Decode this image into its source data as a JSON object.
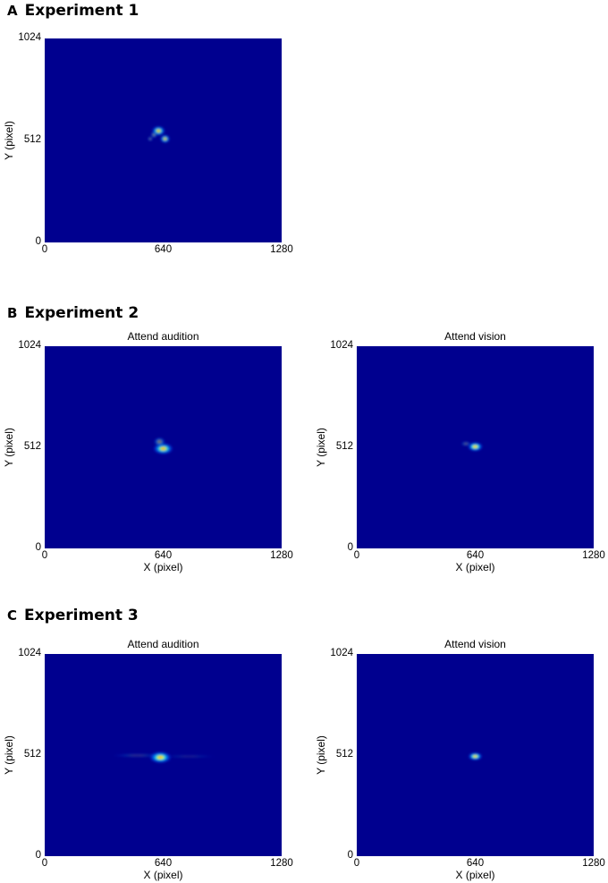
{
  "panels": [
    {
      "letter": "A",
      "title": "Experiment 1"
    },
    {
      "letter": "B",
      "title": "Experiment 2"
    },
    {
      "letter": "C",
      "title": "Experiment 3"
    }
  ],
  "axis_labels": {
    "x": "X (pixel)",
    "y": "Y (pixel)"
  },
  "x_ticks": [
    "0",
    "640",
    "1280"
  ],
  "y_ticks": [
    "1024",
    "512",
    "0"
  ],
  "colormap": {
    "background": "#00008f",
    "low": "#0050ff",
    "mid": "#00e0ff",
    "high": "#ffff00",
    "peak": "#ff2000"
  },
  "chart_data": [
    {
      "type": "heatmap",
      "panel": "A",
      "title": "",
      "xlabel": "",
      "ylabel": "Y (pixel)",
      "xlim": [
        0,
        1280
      ],
      "ylim": [
        0,
        1024
      ],
      "hotspots": [
        {
          "x": 615,
          "y": 560,
          "sx": 40,
          "sy": 28,
          "w": 0.9
        },
        {
          "x": 650,
          "y": 520,
          "sx": 30,
          "sy": 24,
          "w": 0.85
        },
        {
          "x": 590,
          "y": 540,
          "sx": 20,
          "sy": 18,
          "w": 0.5
        },
        {
          "x": 570,
          "y": 520,
          "sx": 16,
          "sy": 14,
          "w": 0.4
        }
      ]
    },
    {
      "type": "heatmap",
      "panel": "B",
      "title": "Attend audition",
      "xlabel": "X (pixel)",
      "ylabel": "Y (pixel)",
      "xlim": [
        0,
        1280
      ],
      "ylim": [
        0,
        1024
      ],
      "hotspots": [
        {
          "x": 640,
          "y": 505,
          "sx": 60,
          "sy": 32,
          "w": 0.95
        },
        {
          "x": 620,
          "y": 540,
          "sx": 35,
          "sy": 25,
          "w": 0.5
        }
      ]
    },
    {
      "type": "heatmap",
      "panel": "B",
      "title": "Attend vision",
      "xlabel": "X (pixel)",
      "ylabel": "Y (pixel)",
      "xlim": [
        0,
        1280
      ],
      "ylim": [
        0,
        1024
      ],
      "hotspots": [
        {
          "x": 640,
          "y": 515,
          "sx": 45,
          "sy": 26,
          "w": 1.0
        },
        {
          "x": 590,
          "y": 530,
          "sx": 30,
          "sy": 14,
          "w": 0.35
        }
      ]
    },
    {
      "type": "heatmap",
      "panel": "C",
      "title": "Attend audition",
      "xlabel": "X (pixel)",
      "ylabel": "Y (pixel)",
      "xlim": [
        0,
        1280
      ],
      "ylim": [
        0,
        1024
      ],
      "hotspots": [
        {
          "x": 625,
          "y": 500,
          "sx": 65,
          "sy": 32,
          "w": 1.0
        },
        {
          "x": 500,
          "y": 510,
          "sx": 150,
          "sy": 12,
          "w": 0.18
        },
        {
          "x": 780,
          "y": 505,
          "sx": 160,
          "sy": 10,
          "w": 0.12
        }
      ]
    },
    {
      "type": "heatmap",
      "panel": "C",
      "title": "Attend vision",
      "xlabel": "X (pixel)",
      "ylabel": "Y (pixel)",
      "xlim": [
        0,
        1280
      ],
      "ylim": [
        0,
        1024
      ],
      "hotspots": [
        {
          "x": 640,
          "y": 505,
          "sx": 42,
          "sy": 22,
          "w": 1.0
        }
      ]
    }
  ]
}
